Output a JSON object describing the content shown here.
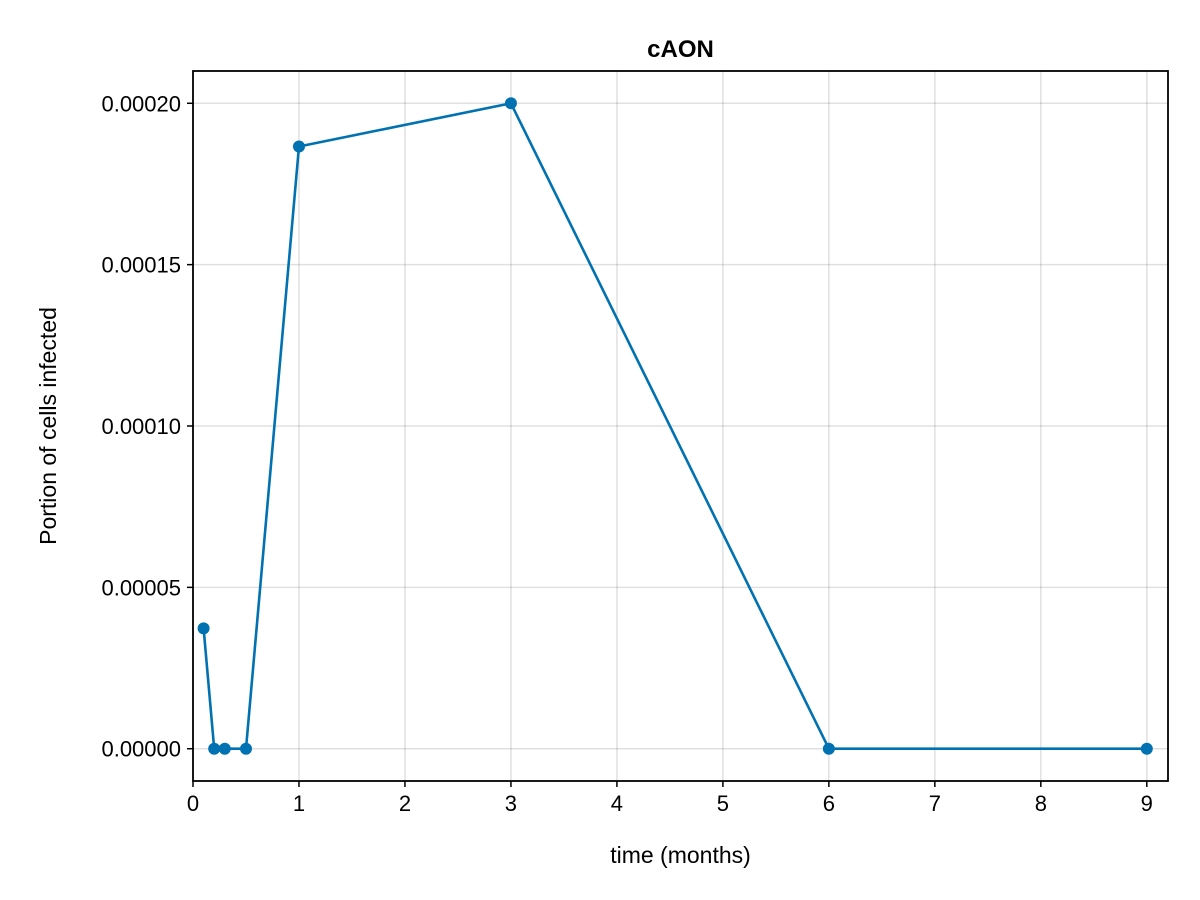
{
  "chart_data": {
    "type": "line",
    "title": "cAON",
    "xlabel": "time (months)",
    "ylabel": "Portion of cells infected",
    "xlim": [
      0,
      9.2
    ],
    "ylim": [
      -1e-05,
      0.00021
    ],
    "xticks": [
      0,
      1,
      2,
      3,
      4,
      5,
      6,
      7,
      8,
      9
    ],
    "xtick_labels": [
      "0",
      "1",
      "2",
      "3",
      "4",
      "5",
      "6",
      "7",
      "8",
      "9"
    ],
    "yticks": [
      0,
      5e-05,
      0.0001,
      0.00015,
      0.0002
    ],
    "ytick_labels": [
      "0.00000",
      "0.00005",
      "0.00010",
      "0.00015",
      "0.00020"
    ],
    "grid": true,
    "legend": "none",
    "series": [
      {
        "color": "#0072b2",
        "marker": "circle",
        "x": [
          0.1,
          0.2,
          0.3,
          0.5,
          1,
          3,
          6,
          9
        ],
        "y": [
          3.73e-05,
          0,
          0,
          0,
          0.0001866,
          0.0002,
          0,
          0
        ]
      }
    ]
  }
}
